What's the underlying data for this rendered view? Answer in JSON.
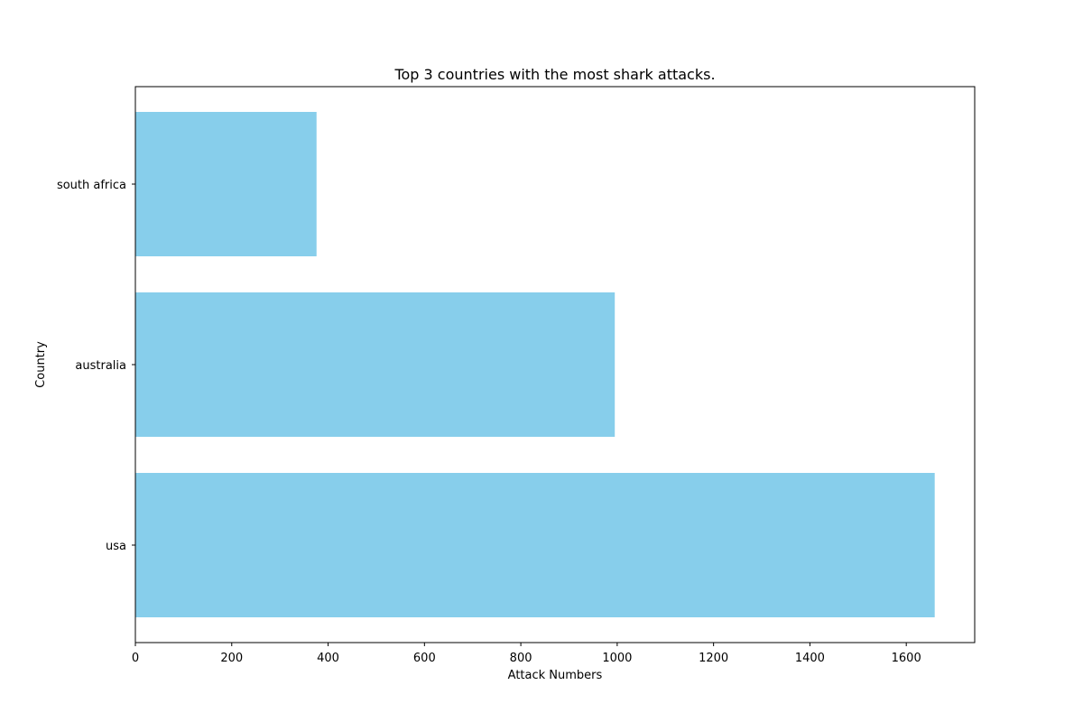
{
  "chart_data": {
    "type": "bar",
    "orientation": "horizontal",
    "title": "Top 3 countries with the most shark attacks.",
    "xlabel": "Attack Numbers",
    "ylabel": "Country",
    "categories": [
      "usa",
      "australia",
      "south africa"
    ],
    "values": [
      1659,
      995,
      376
    ],
    "xlim": [
      0,
      1742
    ],
    "xticks": [
      0,
      200,
      400,
      600,
      800,
      1000,
      1200,
      1400,
      1600
    ],
    "bar_color": "#87ceeb",
    "grid": false,
    "legend": "none"
  }
}
